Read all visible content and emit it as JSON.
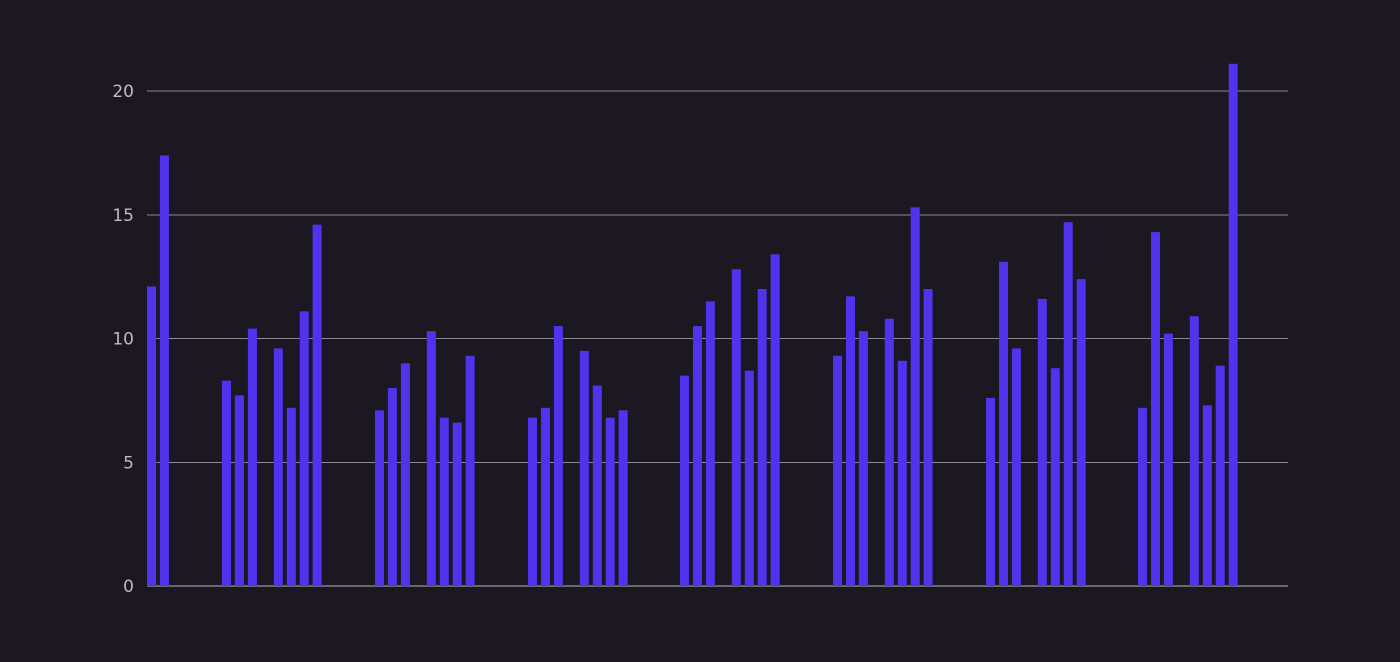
{
  "colors": {
    "background": "#1b1821",
    "bar": "#5133ee",
    "grid": "#8b8891",
    "tick_text": "#bdbac3"
  },
  "chart_data": {
    "type": "bar",
    "title": "",
    "xlabel": "",
    "ylabel": "",
    "ylim": [
      0,
      22
    ],
    "yticks": [
      0,
      5,
      10,
      15,
      20
    ],
    "grid": true,
    "legend": "none",
    "groups": [
      [
        12.1,
        17.4,
        null,
        null,
        null,
        null,
        null,
        null
      ],
      [
        8.3,
        7.7,
        10.4,
        null,
        9.6,
        7.2,
        11.1,
        14.6
      ],
      [
        7.1,
        8.0,
        9.0,
        null,
        10.3,
        6.8,
        6.6,
        9.3
      ],
      [
        6.8,
        7.2,
        10.5,
        null,
        9.5,
        8.1,
        6.8,
        7.1
      ],
      [
        8.5,
        10.5,
        11.5,
        null,
        12.8,
        8.7,
        12.0,
        13.4
      ],
      [
        9.3,
        11.7,
        10.3,
        null,
        10.8,
        9.1,
        15.3,
        12.0
      ],
      [
        7.6,
        13.1,
        9.6,
        null,
        11.6,
        8.8,
        14.7,
        12.4
      ],
      [
        7.2,
        14.3,
        10.2,
        null,
        10.9,
        7.3,
        8.9,
        21.1
      ]
    ]
  }
}
